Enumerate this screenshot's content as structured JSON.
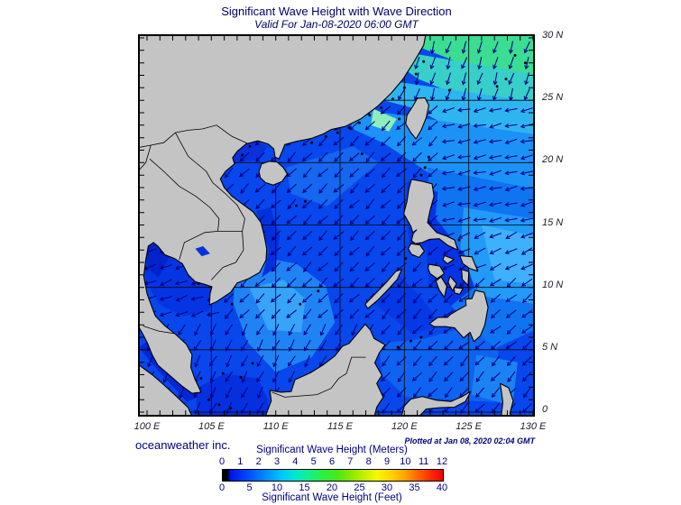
{
  "header": {
    "title": "Significant Wave Height with Wave Direction",
    "subtitle": "Valid For Jan-08-2020 06:00 GMT"
  },
  "map": {
    "lat_labels": [
      "30 N",
      "25 N",
      "20 N",
      "15 N",
      "10 N",
      "5 N",
      "0"
    ],
    "lon_labels": [
      "100 E",
      "105 E",
      "110 E",
      "115 E",
      "120 E",
      "125 E",
      "130 E"
    ]
  },
  "footer": {
    "brand": "oceanweather inc.",
    "plotted_note": "Plotted at Jan 08, 2020 02:04 GMT"
  },
  "legend": {
    "meters_title": "Significant Wave Height (Meters)",
    "feet_title": "Significant Wave Height (Feet)",
    "meters_ticks": [
      "0",
      "1",
      "2",
      "3",
      "4",
      "5",
      "6",
      "7",
      "8",
      "9",
      "10",
      "11",
      "12"
    ],
    "feet_ticks": [
      "0",
      "5",
      "10",
      "15",
      "20",
      "25",
      "30",
      "35",
      "40"
    ],
    "bar_gradient_stops": [
      "#000000 0%",
      "#000000 2%",
      "#0014e8 3.5%",
      "#0050ff 12%",
      "#0090ff 20%",
      "#00c8ff 27%",
      "#00e8d0 33%",
      "#10f098 38%",
      "#28f048 45%",
      "#48e818 52%",
      "#88e800 58%",
      "#c0f000 64%",
      "#f8f800 70%",
      "#ffd000 77%",
      "#ffa000 83%",
      "#ff6000 89%",
      "#ff2800 95%",
      "#f00000 100%"
    ]
  },
  "colors": {
    "sea_base": "#0747ec",
    "land": "#c4c4c4",
    "coastline": "#000000",
    "arrow": "#000080",
    "grid": "#000000",
    "lake": "#0433dd",
    "title_text": "#000066",
    "legend_text": "#000080"
  },
  "chart_data": {
    "type": "heatmap",
    "title": "Significant Wave Height with Wave Direction",
    "valid_time": "Jan-08-2020 06:00 GMT",
    "plotted_time": "Jan 08, 2020 02:04 GMT",
    "region": {
      "lon_range_deg_e": [
        100,
        130
      ],
      "lat_range_deg_n": [
        0,
        30
      ]
    },
    "colorbar": {
      "units_top": "meters",
      "range_m": [
        0,
        12
      ],
      "units_bottom": "feet",
      "range_ft": [
        0,
        40
      ]
    },
    "estimated_wave_heights_m": {
      "east_china_sea_northeast": 3.0,
      "waters_around_taiwan": 2.5,
      "luzon_strait": 2.0,
      "northern_south_china_sea": 1.5,
      "central_south_china_sea": 1.5,
      "southern_south_china_sea_core": 2.0,
      "pacific_east_of_philippines": 1.5,
      "gulf_of_thailand": 1.0,
      "gulf_of_tonkin": 1.0,
      "sulu_celebes_seas": 1.0,
      "nearshore_margins": 0.5
    },
    "wave_direction_summary": "Arrows point generally southwestward across the South China Sea (northeast monsoon), southward in the East China Sea and westward east of the Philippines."
  }
}
